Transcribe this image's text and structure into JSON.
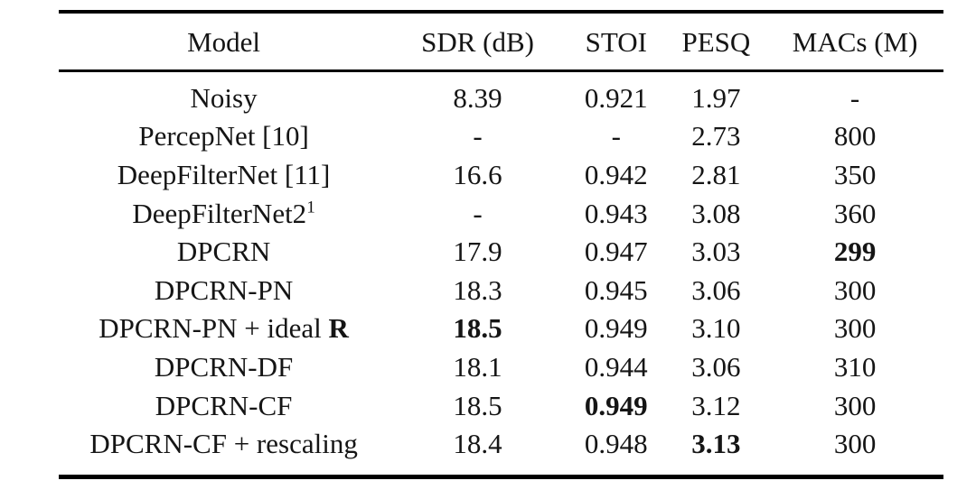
{
  "colors": {
    "background": "#ffffff",
    "text": "#151515",
    "rule": "#000000"
  },
  "table": {
    "headers": {
      "model": "Model",
      "sdr": "SDR (dB)",
      "stoi": "STOI",
      "pesq": "PESQ",
      "macs": "MACs (M)"
    },
    "rows": [
      {
        "model": "Noisy",
        "sdr": "8.39",
        "stoi": "0.921",
        "pesq": "1.97",
        "macs": "-",
        "bold": []
      },
      {
        "model": "PercepNet [10]",
        "sdr": "-",
        "stoi": "-",
        "pesq": "2.73",
        "macs": "800",
        "bold": []
      },
      {
        "model": "DeepFilterNet [11]",
        "sdr": "16.6",
        "stoi": "0.942",
        "pesq": "2.81",
        "macs": "350",
        "bold": []
      },
      {
        "model": "DeepFilterNet2",
        "model_sup": "1",
        "sdr": "-",
        "stoi": "0.943",
        "pesq": "3.08",
        "macs": "360",
        "bold": []
      },
      {
        "model": "DPCRN",
        "sdr": "17.9",
        "stoi": "0.947",
        "pesq": "3.03",
        "macs": "299",
        "bold": [
          "macs"
        ]
      },
      {
        "model": "DPCRN-PN",
        "sdr": "18.3",
        "stoi": "0.945",
        "pesq": "3.06",
        "macs": "300",
        "bold": []
      },
      {
        "model": "DPCRN-PN + ideal ",
        "model_bold": "R",
        "sdr": "18.5",
        "stoi": "0.949",
        "pesq": "3.10",
        "macs": "300",
        "bold": [
          "sdr"
        ]
      },
      {
        "model": "DPCRN-DF",
        "sdr": "18.1",
        "stoi": "0.944",
        "pesq": "3.06",
        "macs": "310",
        "bold": []
      },
      {
        "model": "DPCRN-CF",
        "sdr": "18.5",
        "stoi": "0.949",
        "pesq": "3.12",
        "macs": "300",
        "bold": [
          "stoi"
        ]
      },
      {
        "model": "DPCRN-CF + rescaling",
        "sdr": "18.4",
        "stoi": "0.948",
        "pesq": "3.13",
        "macs": "300",
        "bold": [
          "pesq"
        ]
      }
    ]
  }
}
